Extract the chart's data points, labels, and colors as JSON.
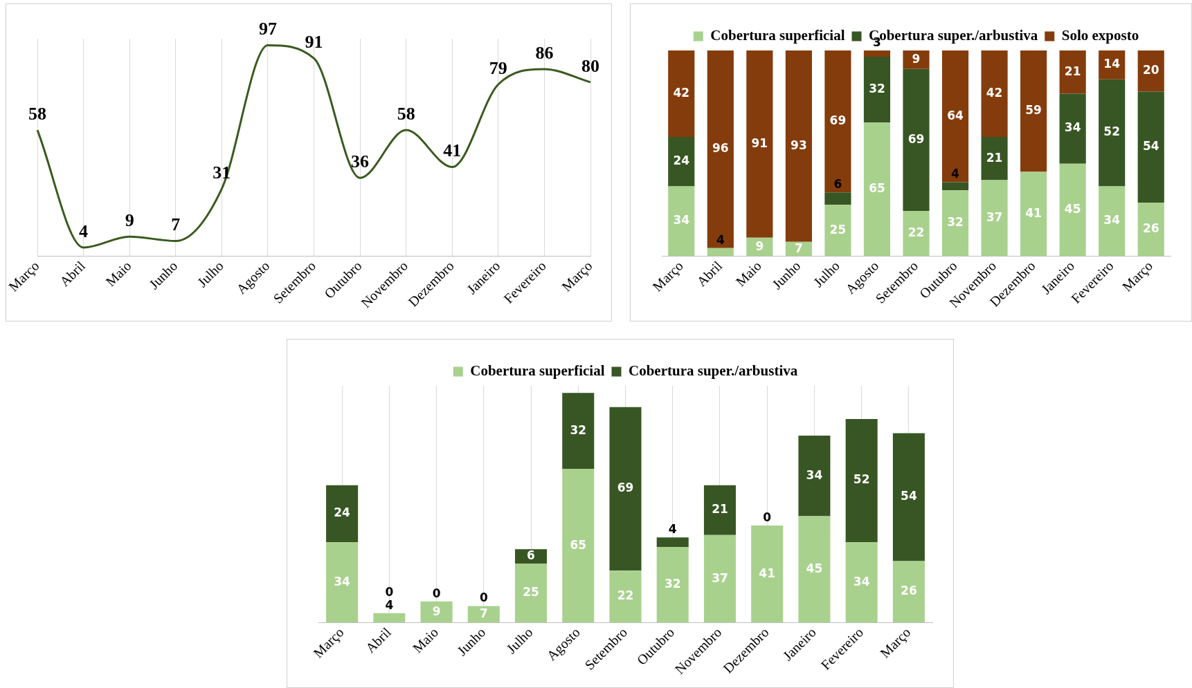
{
  "chart_data": [
    {
      "type": "line",
      "categories": [
        "Março",
        "Abril",
        "Maio",
        "Junho",
        "Julho",
        "Agosto",
        "Setembro",
        "Outubro",
        "Novembro",
        "Dezembro",
        "Janeiro",
        "Fevereiro",
        "Março"
      ],
      "series": [
        {
          "color": "#3a5a1f",
          "values": [
            58,
            4,
            9,
            7,
            31,
            97,
            91,
            36,
            58,
            41,
            79,
            86,
            80
          ]
        }
      ],
      "data_labels": true,
      "marker": "none",
      "grid": "x",
      "legend": false,
      "tick_labels": "x"
    },
    {
      "type": "bar",
      "stacked": true,
      "categories": [
        "Março",
        "Abril",
        "Maio",
        "Junho",
        "Julho",
        "Agosto",
        "Setembro",
        "Outubro",
        "Novembro",
        "Dezembro",
        "Janeiro",
        "Fevereiro",
        "Março"
      ],
      "series": [
        {
          "name": "Cobertura superficial",
          "color": "#a9d18e",
          "values": [
            34,
            4,
            9,
            7,
            25,
            65,
            22,
            32,
            37,
            41,
            45,
            34,
            26
          ],
          "value_labels": [
            "34",
            "4",
            "9",
            "7",
            "25",
            "65",
            "22",
            "32",
            "37",
            "41",
            "45",
            "34",
            "26"
          ]
        },
        {
          "name": "Cobertura super./arbustiva",
          "color": "#375623",
          "values": [
            24,
            0,
            0,
            0,
            6,
            32,
            69,
            4,
            21,
            0,
            34,
            52,
            54
          ],
          "value_labels": [
            "24",
            null,
            null,
            null,
            "6",
            "32",
            "69",
            "4",
            "21",
            null,
            "34",
            "52",
            "54"
          ]
        },
        {
          "name": "Solo exposto",
          "color": "#843c0c",
          "values": [
            42,
            96,
            91,
            93,
            69,
            3,
            9,
            64,
            42,
            59,
            21,
            14,
            20
          ],
          "value_labels": [
            "42",
            "96",
            "91",
            "93",
            "69",
            "3",
            "9",
            "64",
            "42",
            "59",
            "21",
            "14",
            "20"
          ]
        }
      ],
      "legend": "top",
      "grid": false,
      "tick_labels": "x"
    },
    {
      "type": "bar",
      "stacked": true,
      "categories": [
        "Março",
        "Abril",
        "Maio",
        "Junho",
        "Julho",
        "Agosto",
        "Setembro",
        "Outubro",
        "Novembro",
        "Dezembro",
        "Janeiro",
        "Fevereiro",
        "Março"
      ],
      "series": [
        {
          "name": "Cobertura superficial",
          "color": "#a9d18e",
          "values": [
            34,
            4,
            9,
            7,
            25,
            65,
            22,
            32,
            37,
            41,
            45,
            34,
            26
          ]
        },
        {
          "name": "Cobertura super./arbustiva",
          "color": "#375623",
          "values": [
            24,
            0,
            0,
            0,
            6,
            32,
            69,
            4,
            21,
            0,
            34,
            52,
            54
          ]
        }
      ],
      "data_labels": true,
      "legend": "top",
      "grid": "x",
      "tick_labels": "x"
    }
  ]
}
